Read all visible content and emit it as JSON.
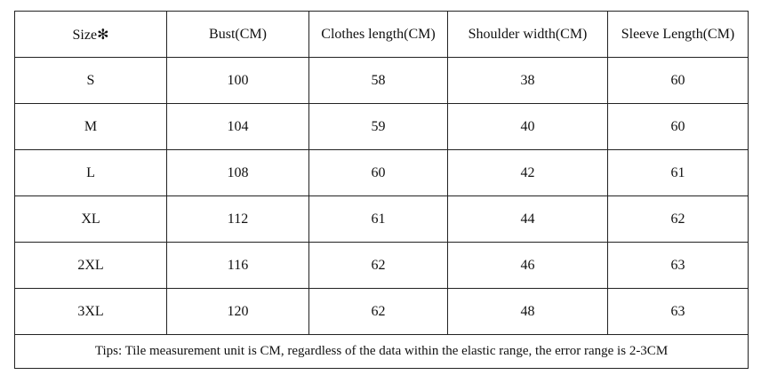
{
  "table": {
    "header": [
      "Size✻",
      "Bust(CM)",
      "Clothes length(CM)",
      "Shoulder width(CM)",
      "Sleeve Length(CM)"
    ],
    "rows": [
      [
        "S",
        "100",
        "58",
        "38",
        "60"
      ],
      [
        "M",
        "104",
        "59",
        "40",
        "60"
      ],
      [
        "L",
        "108",
        "60",
        "42",
        "61"
      ],
      [
        "XL",
        "112",
        "61",
        "44",
        "62"
      ],
      [
        "2XL",
        "116",
        "62",
        "46",
        "63"
      ],
      [
        "3XL",
        "120",
        "62",
        "48",
        "63"
      ]
    ],
    "tips": "Tips: Tile measurement unit is CM, regardless of the data within the elastic range, the error range is 2-3CM"
  }
}
